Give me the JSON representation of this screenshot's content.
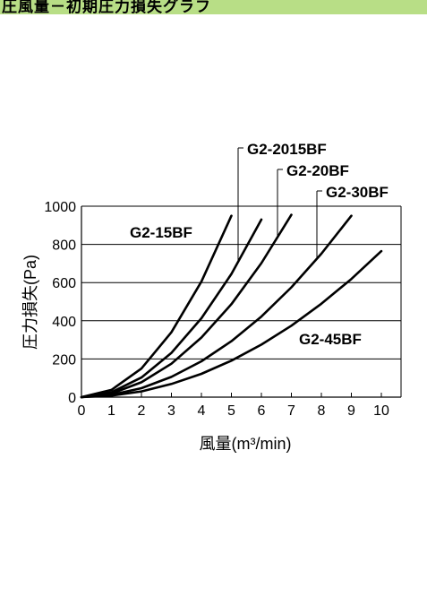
{
  "header": {
    "banner_text": "圧風量－初期圧力損失グラフ",
    "banner_color": "#b8de86"
  },
  "chart_data": {
    "type": "line",
    "title": "",
    "xlabel": "風量(m³/min)",
    "ylabel": "圧力損失(Pa)",
    "xlim": [
      0,
      10.5
    ],
    "ylim": [
      0,
      1000
    ],
    "x_ticks": [
      "0",
      "1",
      "2",
      "3",
      "4",
      "5",
      "6",
      "7",
      "8",
      "9",
      "10"
    ],
    "y_ticks": [
      "0",
      "200",
      "400",
      "600",
      "800",
      "1000"
    ],
    "grid": "horizontal",
    "legend": "inline labels",
    "line_color": "#000000",
    "series": [
      {
        "name": "G2-15BF",
        "x": [
          0,
          1,
          2,
          3,
          4,
          5
        ],
        "y": [
          0,
          38,
          150,
          340,
          605,
          950
        ]
      },
      {
        "name": "G2-2015BF",
        "x": [
          0,
          1,
          2,
          3,
          4,
          5,
          6
        ],
        "y": [
          0,
          26,
          103,
          232,
          413,
          645,
          930
        ]
      },
      {
        "name": "G2-20BF",
        "x": [
          0,
          1,
          2,
          3,
          4,
          5,
          6,
          7
        ],
        "y": [
          0,
          19,
          78,
          175,
          312,
          487,
          702,
          955
        ]
      },
      {
        "name": "G2-30BF",
        "x": [
          0,
          1,
          2,
          3,
          4,
          5,
          6,
          7,
          8,
          9
        ],
        "y": [
          0,
          12,
          47,
          106,
          188,
          293,
          422,
          575,
          751,
          950
        ]
      },
      {
        "name": "G2-45BF",
        "x": [
          0,
          1,
          2,
          3,
          4,
          5,
          6,
          7,
          8,
          9,
          10
        ],
        "y": [
          0,
          8,
          30,
          69,
          122,
          191,
          275,
          374,
          489,
          619,
          765
        ]
      }
    ]
  }
}
